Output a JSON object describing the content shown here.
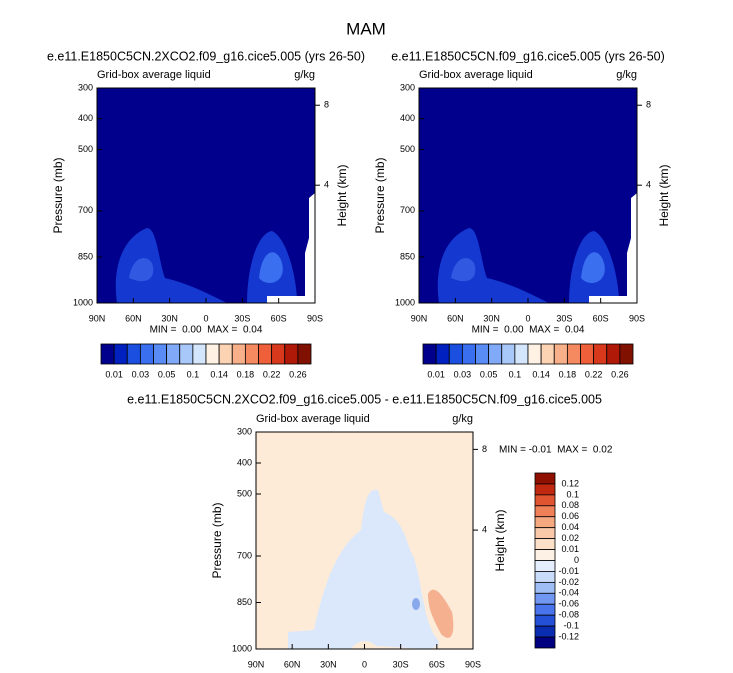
{
  "title": "MAM",
  "chart_data": [
    {
      "type": "contour",
      "title": "e.e11.E1850C5CN.2XCO2.f09_g16.cice5.005 (yrs 26-50)",
      "left_label": "Grid-box average liquid",
      "right_label": "g/kg",
      "ylabel": "Pressure (mb)",
      "y2label": "Height (km)",
      "ylim": [
        1000,
        300
      ],
      "yticks": [
        300,
        400,
        500,
        700,
        850,
        1000
      ],
      "y2ticks": [
        8,
        4
      ],
      "xlim": [
        90,
        -90
      ],
      "xticks": [
        {
          "value": 90,
          "label": "90N"
        },
        {
          "value": 60,
          "label": "60N"
        },
        {
          "value": 30,
          "label": "30N"
        },
        0,
        {
          "value": -30,
          "label": "30S"
        },
        {
          "value": -60,
          "label": "60S"
        },
        {
          "value": -90,
          "label": "90S"
        }
      ],
      "annotation": "MIN =  0.00  MAX =  0.04",
      "colorbar": {
        "orientation": "horizontal",
        "levels": [
          0.01,
          0.03,
          0.05,
          0.1,
          0.14,
          0.18,
          0.22,
          0.26
        ],
        "colors": [
          "#00008c",
          "#0020c0",
          "#1a4fe0",
          "#3a6ff0",
          "#5a8cf5",
          "#80aaf7",
          "#a8c8fa",
          "#d4e6fc",
          "#fff2e4",
          "#fcd4b4",
          "#f8b08a",
          "#f58a60",
          "#ef5f3a",
          "#d8381c",
          "#b01808",
          "#801000"
        ]
      }
    },
    {
      "type": "contour",
      "title": "e.e11.E1850C5CN.f09_g16.cice5.005 (yrs 26-50)",
      "left_label": "Grid-box average liquid",
      "right_label": "g/kg",
      "ylabel": "Pressure (mb)",
      "y2label": "Height (km)",
      "ylim": [
        1000,
        300
      ],
      "yticks": [
        300,
        400,
        500,
        700,
        850,
        1000
      ],
      "y2ticks": [
        8,
        4
      ],
      "xlim": [
        90,
        -90
      ],
      "xticks": [
        {
          "value": 90,
          "label": "90N"
        },
        {
          "value": 60,
          "label": "60N"
        },
        {
          "value": 30,
          "label": "30N"
        },
        0,
        {
          "value": -30,
          "label": "30S"
        },
        {
          "value": -60,
          "label": "60S"
        },
        {
          "value": -90,
          "label": "90S"
        }
      ],
      "annotation": "MIN =  0.00  MAX =  0.04",
      "colorbar": {
        "orientation": "horizontal",
        "levels": [
          0.01,
          0.03,
          0.05,
          0.1,
          0.14,
          0.18,
          0.22,
          0.26
        ],
        "colors": [
          "#00008c",
          "#0020c0",
          "#1a4fe0",
          "#3a6ff0",
          "#5a8cf5",
          "#80aaf7",
          "#a8c8fa",
          "#d4e6fc",
          "#fff2e4",
          "#fcd4b4",
          "#f8b08a",
          "#f58a60",
          "#ef5f3a",
          "#d8381c",
          "#b01808",
          "#801000"
        ]
      }
    },
    {
      "type": "contour",
      "title": "e.e11.E1850C5CN.2XCO2.f09_g16.cice5.005 - e.e11.E1850C5CN.f09_g16.cice5.005",
      "left_label": "Grid-box average liquid",
      "right_label": "g/kg",
      "ylabel": "Pressure (mb)",
      "y2label": "Height (km)",
      "ylim": [
        1000,
        300
      ],
      "yticks": [
        300,
        400,
        500,
        700,
        850,
        1000
      ],
      "y2ticks": [
        8,
        4
      ],
      "xlim": [
        90,
        -90
      ],
      "xticks": [
        {
          "value": 90,
          "label": "90N"
        },
        {
          "value": 60,
          "label": "60N"
        },
        {
          "value": 30,
          "label": "30N"
        },
        0,
        {
          "value": -30,
          "label": "30S"
        },
        {
          "value": -60,
          "label": "60S"
        },
        {
          "value": -90,
          "label": "90S"
        }
      ],
      "annotation": "MIN = -0.01  MAX =  0.02",
      "colorbar": {
        "orientation": "vertical",
        "levels": [
          0.12,
          0.1,
          0.08,
          0.06,
          0.04,
          0.02,
          0.01,
          0,
          -0.01,
          -0.02,
          -0.04,
          -0.06,
          -0.08,
          -0.1,
          -0.12
        ],
        "colors": [
          "#901000",
          "#c02810",
          "#e05530",
          "#f08058",
          "#f5a880",
          "#f8c8a8",
          "#fce0c8",
          "#fdf0e4",
          "#e4eefc",
          "#c8dcfa",
          "#a0bef6",
          "#7098f2",
          "#4a74ec",
          "#2450d8",
          "#0a2cb0",
          "#000080"
        ]
      }
    }
  ]
}
